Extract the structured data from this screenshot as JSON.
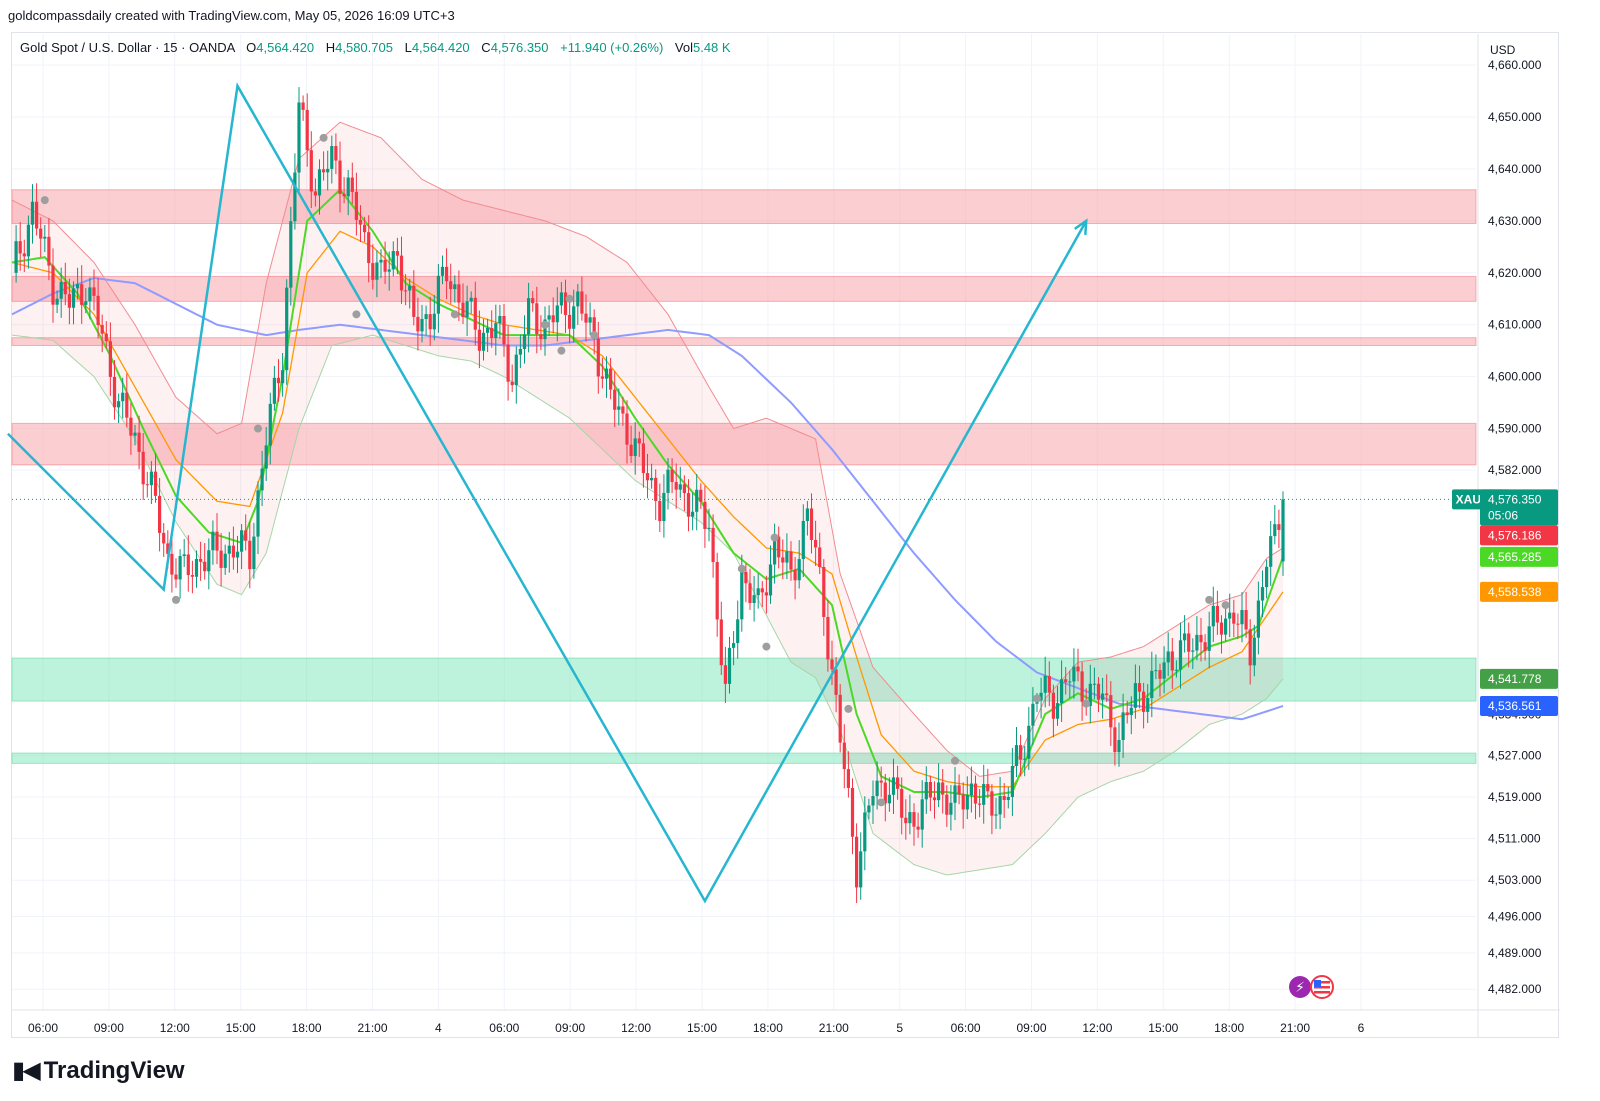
{
  "attribution": "goldcompassdaily created with TradingView.com, May 05, 2026 16:09 UTC+3",
  "header": {
    "symbol": "Gold Spot / U.S. Dollar · 15 · OANDA",
    "open_label": "O",
    "open": "4,564.420",
    "high_label": "H",
    "high": "4,580.705",
    "low_label": "L",
    "low": "4,564.420",
    "close_label": "C",
    "close": "4,576.350",
    "change": "+11.940 (+0.26%)",
    "vol_label": "Vol",
    "vol": "5.48 K"
  },
  "currency": "USD",
  "footer_brand": "TradingView",
  "colors": {
    "up": "#089981",
    "down": "#f23645",
    "ema_fast": "#4cd926",
    "ema_slow": "#ff9800",
    "ma_long": "#8f9bff",
    "trendline": "#26b6d0",
    "resistance_zone": "#f7a6ab",
    "support_zone": "#7be6ba"
  },
  "chart_data": {
    "type": "candlestick",
    "symbol": "XAUUSD",
    "timeframe": "15",
    "x_ticks": [
      "06:00",
      "09:00",
      "12:00",
      "15:00",
      "18:00",
      "21:00",
      "4",
      "06:00",
      "09:00",
      "12:00",
      "15:00",
      "18:00",
      "21:00",
      "5",
      "06:00",
      "09:00",
      "12:00",
      "15:00",
      "18:00",
      "21:00",
      "6"
    ],
    "y_ticks": [
      "4,660.000",
      "4,650.000",
      "4,640.000",
      "4,630.000",
      "4,620.000",
      "4,610.000",
      "4,600.000",
      "4,590.000",
      "4,582.000",
      "4,527.000",
      "4,519.000",
      "4,511.000",
      "4,503.000",
      "4,496.000",
      "4,489.000",
      "4,482.000"
    ],
    "ylim": [
      4478,
      4666
    ],
    "price_tags": [
      {
        "label": "XAUUSD",
        "value": "4,576.350",
        "countdown": "05:06",
        "color": "#089981"
      },
      {
        "value": "4,576.186",
        "color": "#f23645"
      },
      {
        "value": "4,565.285",
        "color": "#4cd926"
      },
      {
        "value": "4,558.538",
        "color": "#ff9800"
      },
      {
        "value": "4,541.778",
        "color": "#43a047"
      },
      {
        "value": "4,536.561",
        "color": "#2962ff"
      }
    ],
    "last_price": 4576.35,
    "partial_tick_label": "4,534.900",
    "resistance_zones": [
      [
        4629.5,
        4636.0
      ],
      [
        4614.5,
        4619.3
      ],
      [
        4606.0,
        4607.5
      ],
      [
        4583.0,
        4591.0
      ]
    ],
    "support_zones": [
      [
        4537.5,
        4545.8
      ],
      [
        4525.5,
        4527.5
      ]
    ],
    "candle_anchors": [
      [
        0,
        4620
      ],
      [
        5,
        4632
      ],
      [
        10,
        4618
      ],
      [
        14,
        4614
      ],
      [
        18,
        4618
      ],
      [
        22,
        4608
      ],
      [
        26,
        4595
      ],
      [
        30,
        4588
      ],
      [
        34,
        4578
      ],
      [
        38,
        4565
      ],
      [
        42,
        4562
      ],
      [
        46,
        4565
      ],
      [
        50,
        4566
      ],
      [
        54,
        4567
      ],
      [
        58,
        4566
      ],
      [
        62,
        4588
      ],
      [
        66,
        4605
      ],
      [
        70,
        4652
      ],
      [
        74,
        4636
      ],
      [
        78,
        4642
      ],
      [
        82,
        4636
      ],
      [
        86,
        4626
      ],
      [
        90,
        4619
      ],
      [
        94,
        4624
      ],
      [
        98,
        4610
      ],
      [
        102,
        4612
      ],
      [
        106,
        4620
      ],
      [
        110,
        4614
      ],
      [
        114,
        4608
      ],
      [
        118,
        4610
      ],
      [
        122,
        4600
      ],
      [
        126,
        4612
      ],
      [
        130,
        4610
      ],
      [
        134,
        4613
      ],
      [
        138,
        4614
      ],
      [
        142,
        4607
      ],
      [
        146,
        4596
      ],
      [
        150,
        4590
      ],
      [
        154,
        4582
      ],
      [
        158,
        4576
      ],
      [
        162,
        4580
      ],
      [
        166,
        4575
      ],
      [
        170,
        4572
      ],
      [
        174,
        4538
      ],
      [
        178,
        4562
      ],
      [
        182,
        4555
      ],
      [
        186,
        4568
      ],
      [
        190,
        4561
      ],
      [
        194,
        4574
      ],
      [
        198,
        4556
      ],
      [
        202,
        4530
      ],
      [
        206,
        4506
      ],
      [
        210,
        4520
      ],
      [
        214,
        4522
      ],
      [
        218,
        4514
      ],
      [
        222,
        4517
      ],
      [
        226,
        4521
      ],
      [
        230,
        4517
      ],
      [
        234,
        4521
      ],
      [
        238,
        4517
      ],
      [
        242,
        4519
      ],
      [
        246,
        4527
      ],
      [
        250,
        4539
      ],
      [
        254,
        4538
      ],
      [
        258,
        4542
      ],
      [
        262,
        4540
      ],
      [
        266,
        4538
      ],
      [
        270,
        4530
      ],
      [
        274,
        4539
      ],
      [
        278,
        4540
      ],
      [
        282,
        4546
      ],
      [
        286,
        4547
      ],
      [
        290,
        4550
      ],
      [
        294,
        4552
      ],
      [
        298,
        4555
      ],
      [
        302,
        4547
      ],
      [
        306,
        4565
      ],
      [
        308,
        4568
      ],
      [
        310,
        4576.35
      ]
    ],
    "ema_fast_anchors": [
      [
        0,
        4622
      ],
      [
        8,
        4623
      ],
      [
        16,
        4616
      ],
      [
        24,
        4604
      ],
      [
        32,
        4590
      ],
      [
        40,
        4577
      ],
      [
        48,
        4570
      ],
      [
        56,
        4568
      ],
      [
        60,
        4576
      ],
      [
        66,
        4600
      ],
      [
        72,
        4630
      ],
      [
        80,
        4636
      ],
      [
        88,
        4628
      ],
      [
        96,
        4618
      ],
      [
        104,
        4614
      ],
      [
        112,
        4611
      ],
      [
        120,
        4608
      ],
      [
        128,
        4608
      ],
      [
        136,
        4608
      ],
      [
        144,
        4602
      ],
      [
        152,
        4592
      ],
      [
        160,
        4583
      ],
      [
        168,
        4576
      ],
      [
        176,
        4566
      ],
      [
        184,
        4561
      ],
      [
        192,
        4563
      ],
      [
        200,
        4556
      ],
      [
        206,
        4535
      ],
      [
        212,
        4523
      ],
      [
        220,
        4520
      ],
      [
        228,
        4520
      ],
      [
        236,
        4519
      ],
      [
        244,
        4520
      ],
      [
        252,
        4535
      ],
      [
        260,
        4539
      ],
      [
        268,
        4536
      ],
      [
        276,
        4538
      ],
      [
        284,
        4543
      ],
      [
        292,
        4548
      ],
      [
        300,
        4550
      ],
      [
        304,
        4552
      ],
      [
        310,
        4565.285
      ]
    ],
    "ema_slow_anchors": [
      [
        0,
        4622
      ],
      [
        10,
        4620
      ],
      [
        20,
        4612
      ],
      [
        30,
        4598
      ],
      [
        40,
        4584
      ],
      [
        50,
        4576
      ],
      [
        58,
        4575
      ],
      [
        66,
        4593
      ],
      [
        72,
        4620
      ],
      [
        80,
        4628
      ],
      [
        88,
        4625
      ],
      [
        96,
        4619
      ],
      [
        104,
        4615
      ],
      [
        112,
        4612
      ],
      [
        120,
        4610
      ],
      [
        128,
        4609
      ],
      [
        136,
        4608
      ],
      [
        144,
        4604
      ],
      [
        152,
        4596
      ],
      [
        160,
        4588
      ],
      [
        168,
        4580
      ],
      [
        176,
        4573
      ],
      [
        184,
        4567
      ],
      [
        192,
        4566
      ],
      [
        200,
        4562
      ],
      [
        206,
        4546
      ],
      [
        212,
        4531
      ],
      [
        220,
        4524
      ],
      [
        228,
        4522
      ],
      [
        236,
        4521
      ],
      [
        244,
        4521
      ],
      [
        252,
        4530
      ],
      [
        260,
        4533
      ],
      [
        268,
        4534
      ],
      [
        276,
        4536
      ],
      [
        284,
        4540
      ],
      [
        292,
        4544
      ],
      [
        300,
        4547
      ],
      [
        310,
        4558.538
      ]
    ],
    "ma_long_anchors": [
      [
        0,
        4612
      ],
      [
        10,
        4616
      ],
      [
        20,
        4619
      ],
      [
        30,
        4618
      ],
      [
        40,
        4614
      ],
      [
        50,
        4610
      ],
      [
        62,
        4608
      ],
      [
        70,
        4609
      ],
      [
        80,
        4610
      ],
      [
        90,
        4609
      ],
      [
        100,
        4608
      ],
      [
        110,
        4607
      ],
      [
        120,
        4606
      ],
      [
        130,
        4606
      ],
      [
        140,
        4607
      ],
      [
        150,
        4608
      ],
      [
        160,
        4609
      ],
      [
        170,
        4608
      ],
      [
        178,
        4604
      ],
      [
        190,
        4595
      ],
      [
        200,
        4586
      ],
      [
        210,
        4576
      ],
      [
        220,
        4566
      ],
      [
        230,
        4557
      ],
      [
        240,
        4549
      ],
      [
        250,
        4543
      ],
      [
        260,
        4540
      ],
      [
        270,
        4537
      ],
      [
        280,
        4536
      ],
      [
        290,
        4535
      ],
      [
        300,
        4534
      ],
      [
        304,
        4535
      ],
      [
        310,
        4536.561
      ]
    ],
    "band_upper_anchors": [
      [
        0,
        4634
      ],
      [
        10,
        4630
      ],
      [
        20,
        4622
      ],
      [
        30,
        4610
      ],
      [
        40,
        4596
      ],
      [
        50,
        4589
      ],
      [
        56,
        4591
      ],
      [
        62,
        4618
      ],
      [
        70,
        4642
      ],
      [
        80,
        4649
      ],
      [
        90,
        4646
      ],
      [
        100,
        4638
      ],
      [
        110,
        4634
      ],
      [
        120,
        4632
      ],
      [
        130,
        4630
      ],
      [
        140,
        4627
      ],
      [
        150,
        4622
      ],
      [
        160,
        4612
      ],
      [
        170,
        4598
      ],
      [
        176,
        4590
      ],
      [
        184,
        4592
      ],
      [
        190,
        4590
      ],
      [
        196,
        4588
      ],
      [
        202,
        4562
      ],
      [
        210,
        4544
      ],
      [
        220,
        4535
      ],
      [
        228,
        4528
      ],
      [
        236,
        4523
      ],
      [
        244,
        4524
      ],
      [
        252,
        4538
      ],
      [
        260,
        4545
      ],
      [
        268,
        4546
      ],
      [
        276,
        4548
      ],
      [
        284,
        4552
      ],
      [
        292,
        4556
      ],
      [
        300,
        4558
      ],
      [
        306,
        4565
      ],
      [
        310,
        4567
      ]
    ],
    "band_lower_anchors": [
      [
        0,
        4608
      ],
      [
        10,
        4607
      ],
      [
        20,
        4600
      ],
      [
        30,
        4588
      ],
      [
        40,
        4572
      ],
      [
        50,
        4560
      ],
      [
        56,
        4558
      ],
      [
        62,
        4566
      ],
      [
        70,
        4590
      ],
      [
        78,
        4606
      ],
      [
        88,
        4608
      ],
      [
        96,
        4606
      ],
      [
        104,
        4604
      ],
      [
        112,
        4603
      ],
      [
        120,
        4600
      ],
      [
        128,
        4596
      ],
      [
        136,
        4592
      ],
      [
        144,
        4586
      ],
      [
        152,
        4580
      ],
      [
        160,
        4576
      ],
      [
        168,
        4572
      ],
      [
        176,
        4566
      ],
      [
        184,
        4554
      ],
      [
        190,
        4545
      ],
      [
        196,
        4542
      ],
      [
        202,
        4532
      ],
      [
        210,
        4512
      ],
      [
        220,
        4506
      ],
      [
        228,
        4504
      ],
      [
        236,
        4505
      ],
      [
        244,
        4506
      ],
      [
        252,
        4512
      ],
      [
        260,
        4519
      ],
      [
        268,
        4522
      ],
      [
        276,
        4524
      ],
      [
        284,
        4528
      ],
      [
        292,
        4533
      ],
      [
        300,
        4535
      ],
      [
        306,
        4538
      ],
      [
        310,
        4541.778
      ]
    ],
    "trend_line": [
      [
        -1,
        4589
      ],
      [
        37,
        4559
      ],
      [
        55,
        4656
      ],
      [
        169,
        4499
      ],
      [
        262,
        4630
      ]
    ],
    "fractal_dots": [
      [
        8,
        4634
      ],
      [
        40,
        4557
      ],
      [
        60,
        4590
      ],
      [
        76,
        4646
      ],
      [
        84,
        4612
      ],
      [
        108,
        4612
      ],
      [
        130,
        4610
      ],
      [
        134,
        4605
      ],
      [
        136,
        4615
      ],
      [
        142,
        4608
      ],
      [
        178,
        4563
      ],
      [
        184,
        4548
      ],
      [
        186,
        4569
      ],
      [
        204,
        4536
      ],
      [
        212,
        4518
      ],
      [
        230,
        4526
      ],
      [
        250,
        4538
      ],
      [
        262,
        4537
      ],
      [
        292,
        4557
      ],
      [
        296,
        4556
      ]
    ]
  }
}
